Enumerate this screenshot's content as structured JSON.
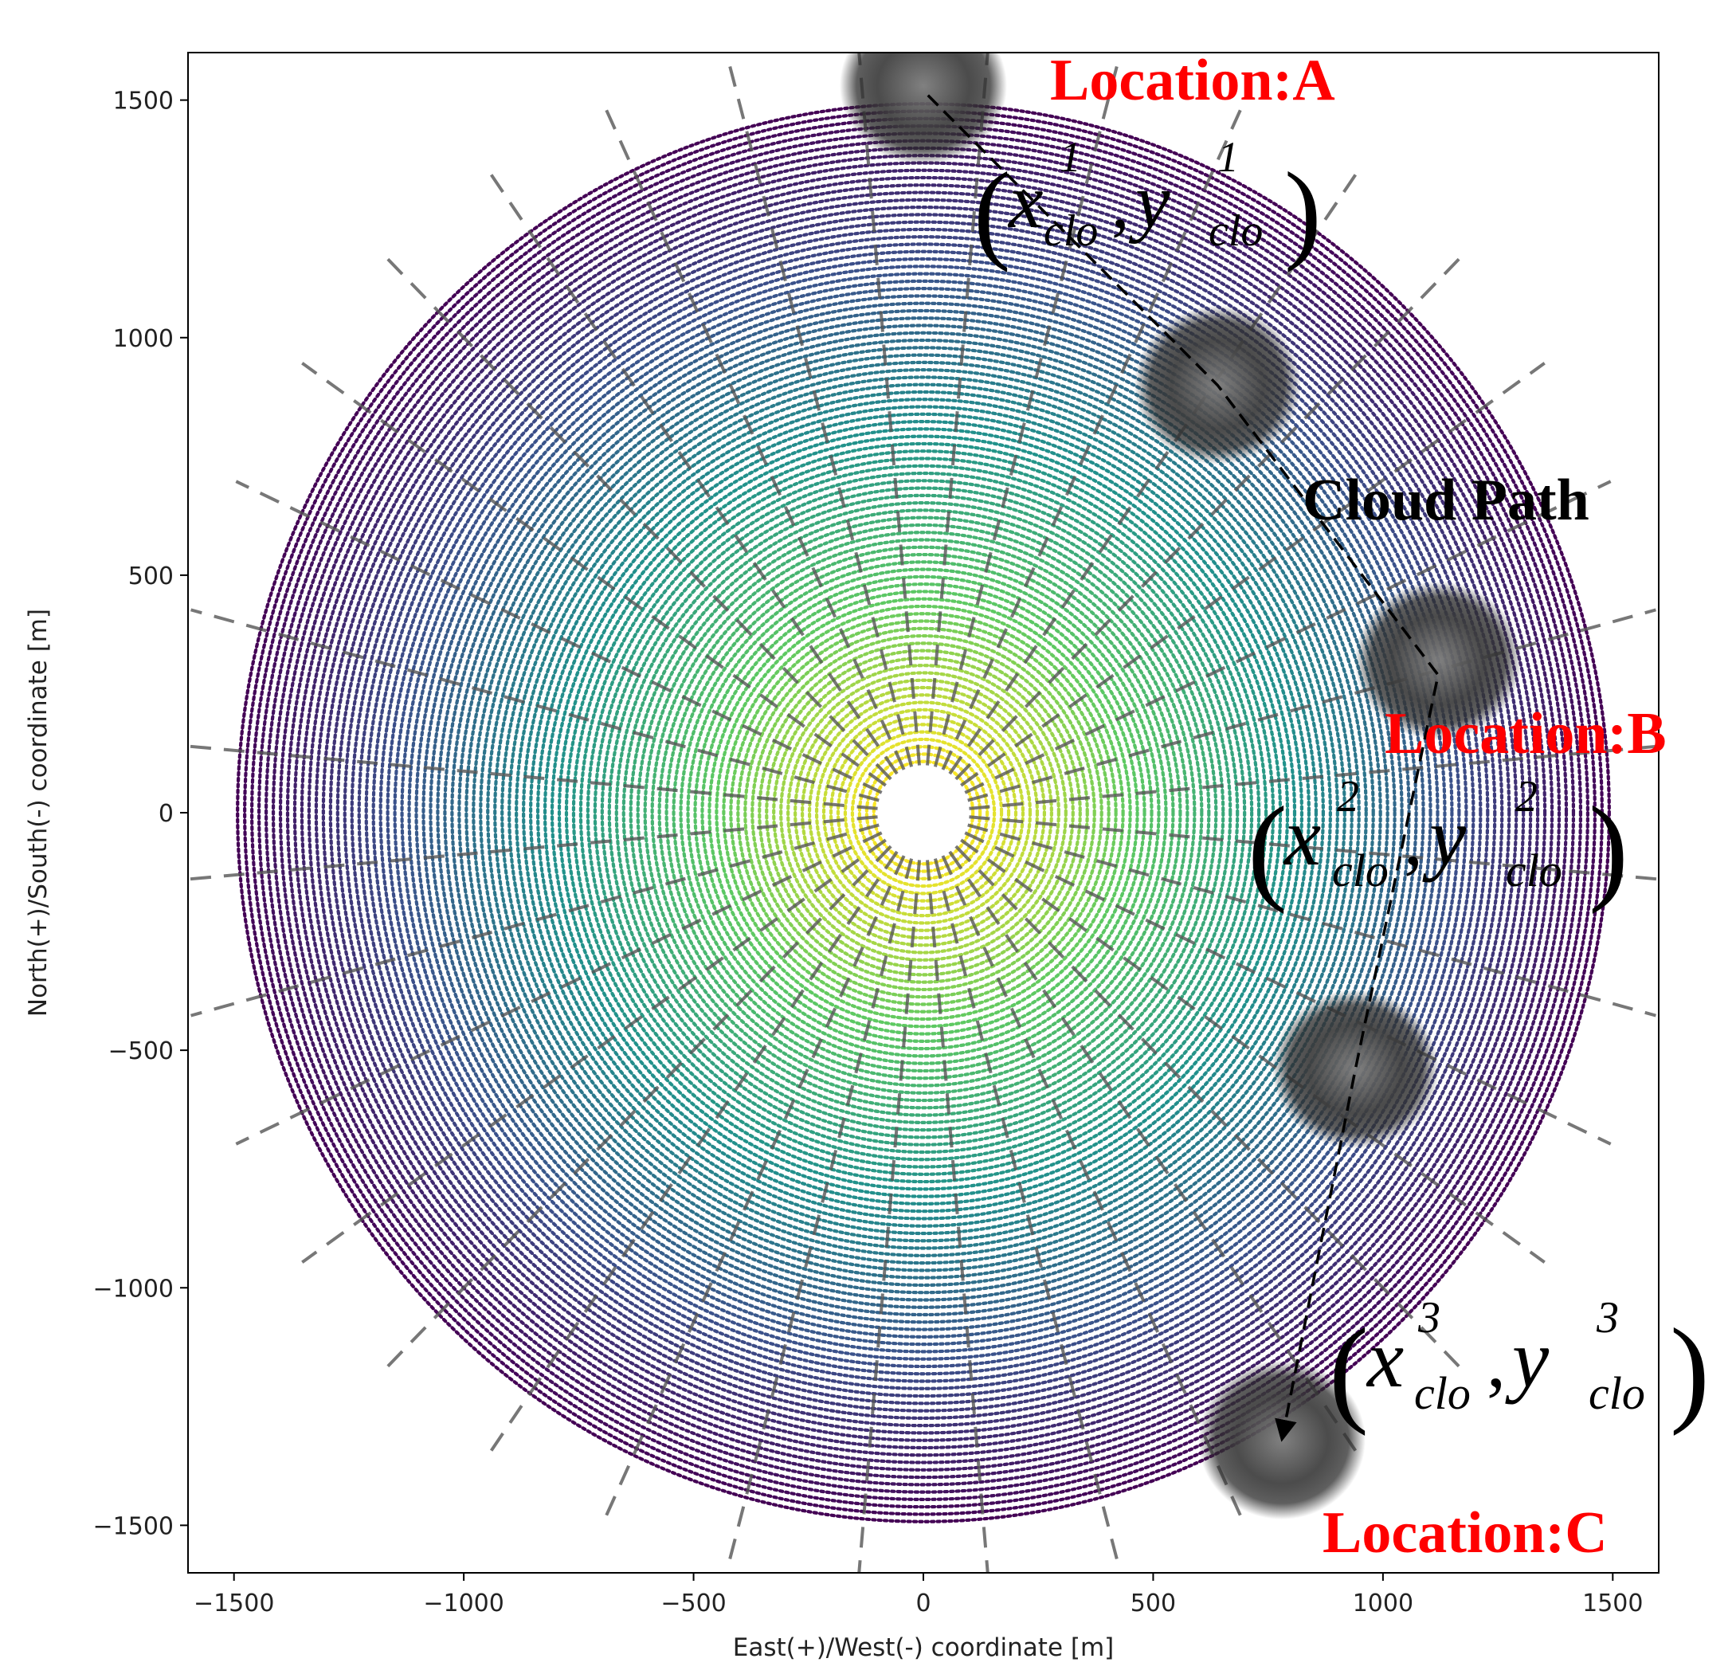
{
  "chart_data": {
    "type": "scatter",
    "description_kind": "heliostat field layout",
    "xlabel": "East(+)/West(-) coordinate [m]",
    "ylabel": "North(+)/South(-) coordinate [m]",
    "xlim": [
      -1600,
      1600
    ],
    "ylim": [
      -1600,
      1600
    ],
    "xticks": [
      -1500,
      -1000,
      -500,
      0,
      500,
      1000,
      1500
    ],
    "xtick_labels": [
      "−1500",
      "−1000",
      "−500",
      "0",
      "500",
      "1000",
      "1500"
    ],
    "yticks": [
      1500,
      1000,
      500,
      0,
      -500,
      -1000,
      -1500
    ],
    "ytick_labels": [
      "1500",
      "1000",
      "500",
      "0",
      "−500",
      "−1000",
      "−1500"
    ],
    "field": {
      "inner_radius": 100,
      "outer_radius": 1500,
      "ring_count": 90,
      "colormap": "viridis",
      "color_stops": [
        "#440154",
        "#3b528b",
        "#21918c",
        "#5ec962",
        "#fde725"
      ]
    },
    "radial_dashed_lines": 36,
    "clouds": [
      {
        "x": 0,
        "y": 1530
      },
      {
        "x": 640,
        "y": 900
      },
      {
        "x": 1120,
        "y": 320
      },
      {
        "x": 940,
        "y": -540
      },
      {
        "x": 780,
        "y": -1320
      }
    ],
    "cloud_path": [
      {
        "x": 10,
        "y": 1510
      },
      {
        "x": 640,
        "y": 900
      },
      {
        "x": 1120,
        "y": 290
      },
      {
        "x": 940,
        "y": -540
      },
      {
        "x": 780,
        "y": -1320
      }
    ],
    "annotations": {
      "location_a": "Location:A",
      "location_b": "Location:B",
      "location_c": "Location:C",
      "cloud_path": "Cloud Path",
      "coord_base_x": "x",
      "coord_base_y": "y",
      "coord_sub": "clo",
      "coord_comma": ",",
      "coord_sup_1": "1",
      "coord_sup_2": "2",
      "coord_sup_3": "3",
      "paren_open": "(",
      "paren_close": ")"
    },
    "colors": {
      "annotation_red": "#ff0000",
      "annotation_black": "#000000",
      "dashed_line": "#555555"
    }
  }
}
